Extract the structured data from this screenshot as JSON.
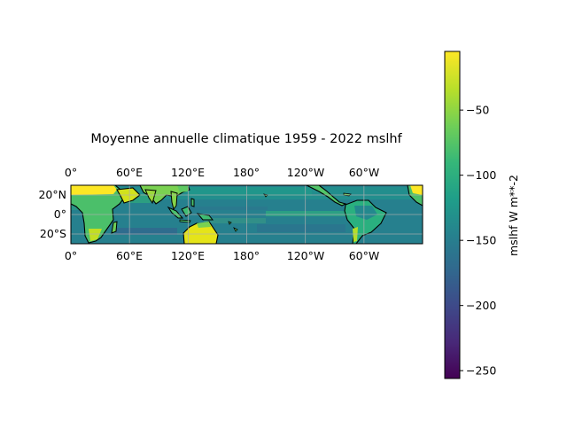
{
  "title": "Moyenne annuelle climatique 1959 - 2022 mslhf",
  "map": {
    "lon_labels_top": [
      "0°",
      "60°E",
      "120°E",
      "180°",
      "120°W",
      "60°W"
    ],
    "lon_labels_bottom": [
      "0°",
      "60°E",
      "120°E",
      "180°",
      "120°W",
      "60°W"
    ],
    "lat_labels": [
      "20°N",
      "0°",
      "20°S"
    ],
    "lon_ticks_deg": [
      0,
      60,
      120,
      180,
      240,
      300
    ],
    "lat_ticks_deg": [
      20,
      0,
      -20
    ],
    "lat_range": [
      -30,
      30
    ],
    "lon_range": [
      0,
      360
    ],
    "gridlines": true,
    "coastlines": true,
    "colormap": "viridis"
  },
  "colorbar": {
    "label": "mslhf W m**-2",
    "tick_labels": [
      "−50",
      "−100",
      "−150",
      "−200",
      "−250"
    ],
    "ticks": [
      -50,
      -100,
      -150,
      -200,
      -250
    ],
    "range": [
      -256,
      -5
    ],
    "colors": [
      "#440154",
      "#482878",
      "#3e4989",
      "#31688e",
      "#26828e",
      "#1f9e89",
      "#35b779",
      "#6ece58",
      "#b5de2b",
      "#fde725"
    ]
  }
}
